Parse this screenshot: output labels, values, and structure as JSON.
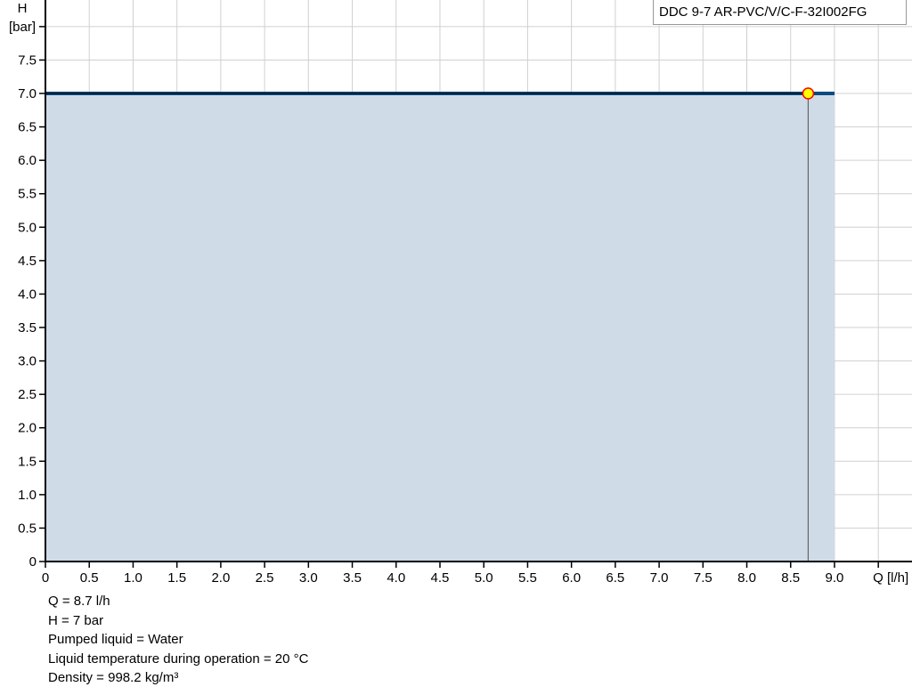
{
  "chart_data": {
    "type": "area",
    "title": "",
    "xlabel": "Q [l/h]",
    "ylabel_top": "H",
    "ylabel_unit": "[bar]",
    "xlim": [
      0,
      9.9
    ],
    "ylim": [
      0,
      8.4
    ],
    "x_ticks": [
      "0",
      "0.5",
      "1.0",
      "1.5",
      "2.0",
      "2.5",
      "3.0",
      "3.5",
      "4.0",
      "4.5",
      "5.0",
      "5.5",
      "6.0",
      "6.5",
      "7.0",
      "7.5",
      "8.0",
      "8.5",
      "9.0"
    ],
    "y_ticks": [
      "0",
      "0.5",
      "1.0",
      "1.5",
      "2.0",
      "2.5",
      "3.0",
      "3.5",
      "4.0",
      "4.5",
      "5.0",
      "5.5",
      "6.0",
      "6.5",
      "7.0",
      "7.5"
    ],
    "grid": true,
    "legend": {
      "position": "top-right",
      "entries": [
        "DDC 9-7 AR-PVC/V/C-F-32I002FG"
      ]
    },
    "series": [
      {
        "name": "DDC 9-7 AR-PVC/V/C-F-32I002FG",
        "x": [
          0,
          9.0
        ],
        "y": [
          7.0,
          7.0
        ],
        "color": "#0b4a80",
        "fill": "#cfdbe6"
      }
    ],
    "duty_point": {
      "x": 8.7,
      "y": 7.0,
      "color": "#ffff00",
      "stroke": "#ff0000"
    }
  },
  "info": [
    "Q = 8.7 l/h",
    "H = 7 bar",
    "Pumped liquid = Water",
    "Liquid temperature during operation = 20 °C",
    "Density = 998.2 kg/m³"
  ]
}
